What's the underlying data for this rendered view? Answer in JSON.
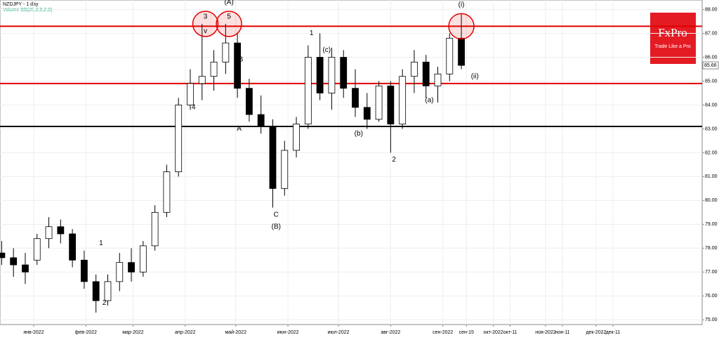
{
  "chart_data": {
    "type": "candlestick",
    "title": "NZDJPY - 1 day",
    "subtitle": "Volume BB(20,2,0,2,0)",
    "logo": "FxPro",
    "tagline": "Trade Like a Pro",
    "x": [
      "2021-12-13",
      "2021-12-20",
      "2021-12-27",
      "2022-01-03",
      "2022-01-10",
      "2022-01-17",
      "2022-01-24",
      "2022-01-31",
      "2022-02-07",
      "2022-02-14",
      "2022-02-21",
      "2022-02-28",
      "2022-03-07",
      "2022-03-14",
      "2022-03-21",
      "2022-03-28",
      "2022-04-04",
      "2022-04-11",
      "2022-04-18",
      "2022-04-25",
      "2022-05-02",
      "2022-05-09",
      "2022-05-16",
      "2022-05-23",
      "2022-05-30",
      "2022-06-06",
      "2022-06-13",
      "2022-06-20",
      "2022-06-27",
      "2022-07-04",
      "2022-07-11",
      "2022-07-18",
      "2022-07-25",
      "2022-08-01",
      "2022-08-08",
      "2022-08-15",
      "2022-08-22",
      "2022-08-29",
      "2022-09-05",
      "2022-09-12"
    ],
    "open": [
      77.8,
      77.6,
      77.3,
      77.5,
      78.4,
      78.9,
      78.6,
      77.5,
      76.6,
      75.8,
      76.6,
      77.4,
      77.0,
      78.1,
      79.5,
      81.2,
      84.0,
      84.9,
      85.2,
      85.8,
      86.6,
      84.7,
      83.6,
      83.1,
      80.5,
      82.1,
      83.2,
      86.0,
      84.5,
      86.0,
      84.7,
      83.9,
      83.4,
      84.8,
      83.2,
      85.2,
      85.8,
      84.8,
      85.3,
      86.8
    ],
    "high": [
      78.3,
      78.0,
      77.8,
      78.6,
      79.3,
      79.2,
      78.8,
      77.9,
      76.9,
      76.9,
      77.8,
      78.0,
      78.3,
      79.8,
      81.5,
      84.3,
      85.5,
      87.4,
      86.3,
      87.4,
      87.0,
      85.1,
      84.4,
      83.4,
      82.5,
      83.5,
      86.5,
      87.0,
      86.4,
      86.3,
      85.5,
      84.5,
      85.0,
      85.0,
      85.5,
      86.3,
      86.1,
      85.6,
      87.0,
      87.8
    ],
    "low": [
      77.3,
      76.8,
      76.5,
      77.3,
      78.0,
      78.2,
      77.2,
      76.3,
      75.3,
      75.6,
      76.2,
      76.6,
      76.8,
      77.9,
      79.3,
      81.0,
      83.8,
      84.2,
      84.6,
      85.3,
      84.3,
      83.3,
      82.8,
      79.7,
      80.2,
      81.8,
      83.0,
      84.2,
      83.8,
      84.3,
      83.5,
      83.0,
      83.3,
      82.0,
      83.0,
      84.5,
      84.3,
      84.1,
      85.0,
      85.5
    ],
    "close": [
      77.6,
      77.3,
      77.0,
      78.4,
      78.9,
      78.6,
      77.5,
      76.6,
      75.8,
      76.6,
      77.4,
      77.0,
      78.1,
      79.5,
      81.2,
      84.0,
      84.9,
      85.2,
      85.8,
      86.6,
      84.7,
      83.6,
      83.1,
      80.5,
      82.1,
      83.2,
      86.0,
      84.5,
      86.0,
      84.7,
      83.9,
      83.4,
      84.8,
      83.2,
      85.2,
      85.8,
      84.8,
      85.3,
      86.8,
      85.66
    ],
    "last_price": 85.66,
    "hlines": [
      {
        "value": 87.3,
        "color": "#e00000"
      },
      {
        "value": 84.9,
        "color": "#e00000"
      },
      {
        "value": 83.1,
        "color": "#000000"
      }
    ],
    "highlights": [
      {
        "x": "2022-04-13",
        "y": 87.4
      },
      {
        "x": "2022-04-27",
        "y": 87.4
      },
      {
        "x": "2022-09-12",
        "y": 87.3
      }
    ],
    "annotations": [
      {
        "text": "3",
        "x": "2022-04-13",
        "y": 87.7
      },
      {
        "text": "v",
        "x": "2022-04-13",
        "y": 87.1
      },
      {
        "text": "(A)",
        "x": "2022-04-27",
        "y": 88.3
      },
      {
        "text": "5",
        "x": "2022-04-27",
        "y": 87.7
      },
      {
        "text": "4",
        "x": "2022-04-06",
        "y": 83.9
      },
      {
        "text": "B",
        "x": "2022-05-04",
        "y": 85.9
      },
      {
        "text": "A",
        "x": "2022-05-03",
        "y": 83.0
      },
      {
        "text": "C",
        "x": "2022-05-25",
        "y": 79.4
      },
      {
        "text": "(B)",
        "x": "2022-05-25",
        "y": 78.9
      },
      {
        "text": "1",
        "x": "2022-06-15",
        "y": 87.0
      },
      {
        "text": "2",
        "x": "2022-08-03",
        "y": 81.7
      },
      {
        "text": "1",
        "x": "2022-02-10",
        "y": 78.2
      },
      {
        "text": "2",
        "x": "2022-02-12",
        "y": 75.7
      },
      {
        "text": "(i)",
        "x": "2022-09-12",
        "y": 88.2
      },
      {
        "text": "(ii)",
        "x": "2022-09-20",
        "y": 85.2
      },
      {
        "text": "(a)",
        "x": "2022-08-24",
        "y": 84.2
      },
      {
        "text": "(b)",
        "x": "2022-07-13",
        "y": 82.8
      },
      {
        "text": "(c)",
        "x": "2022-06-24",
        "y": 86.3
      }
    ],
    "xlim": [
      "2021-12-12",
      "2023-02-02"
    ],
    "xticks": [
      {
        "value": "2022-01-01",
        "label": "янв-2022"
      },
      {
        "value": "2022-02-01",
        "label": "фев-2022"
      },
      {
        "value": "2022-03-01",
        "label": "мар-2022"
      },
      {
        "value": "2022-04-01",
        "label": "апр-2022"
      },
      {
        "value": "2022-05-01",
        "label": "май-2022"
      },
      {
        "value": "2022-06-01",
        "label": "июн-2022"
      },
      {
        "value": "2022-07-01",
        "label": "июл-2022"
      },
      {
        "value": "2022-08-01",
        "label": "авг-2022"
      },
      {
        "value": "2022-09-01",
        "label": "сен-2022"
      },
      {
        "value": "2022-09-15",
        "label": "сен-15"
      },
      {
        "value": "2022-10-01",
        "label": "окт-2022"
      },
      {
        "value": "2022-10-11",
        "label": "окт-11"
      },
      {
        "value": "2022-11-01",
        "label": "ноя-2022"
      },
      {
        "value": "2022-11-11",
        "label": "ноя-11"
      },
      {
        "value": "2022-12-01",
        "label": "дек-2022"
      },
      {
        "value": "2022-12-11",
        "label": "дек-11"
      }
    ],
    "ylim": [
      74.8,
      88.4
    ],
    "yticks": [
      {
        "value": 75,
        "label": "75.00"
      },
      {
        "value": 76,
        "label": "76.00"
      },
      {
        "value": 77,
        "label": "77.00"
      },
      {
        "value": 78,
        "label": "78.00"
      },
      {
        "value": 79,
        "label": "79.00"
      },
      {
        "value": 80,
        "label": "80.00"
      },
      {
        "value": 81,
        "label": "81.00"
      },
      {
        "value": 82,
        "label": "82.00"
      },
      {
        "value": 83,
        "label": "83.00"
      },
      {
        "value": 84,
        "label": "84.00"
      },
      {
        "value": 85,
        "label": "85.00"
      },
      {
        "value": 86,
        "label": "86.00"
      },
      {
        "value": 87,
        "label": "87.00"
      },
      {
        "value": 88,
        "label": "88.00"
      }
    ],
    "grid": true,
    "up_color": "#ffffff",
    "down_color": "#000000"
  }
}
